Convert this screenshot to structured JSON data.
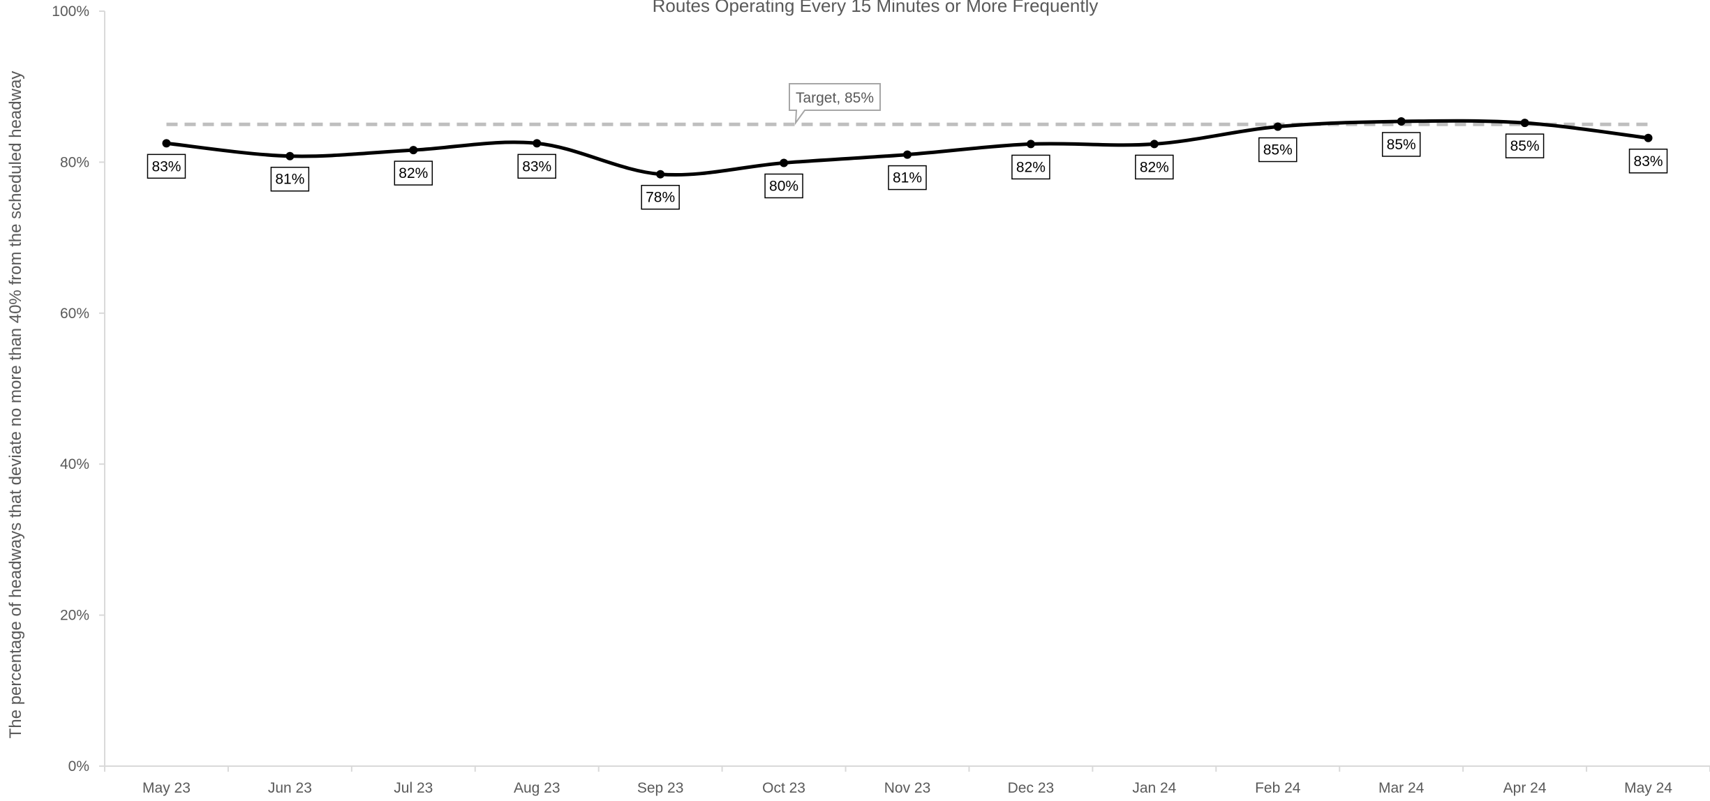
{
  "chart_data": {
    "type": "line",
    "title": "Routes Operating Every 15 Minutes or More Frequently",
    "xlabel": "",
    "ylabel": "The percentage of headways that deviate no more than 40% from the scheduled headway",
    "ylim": [
      0,
      100
    ],
    "y_ticks": [
      "0%",
      "20%",
      "40%",
      "60%",
      "80%",
      "100%"
    ],
    "y_tick_values": [
      0,
      20,
      40,
      60,
      80,
      100
    ],
    "categories": [
      "May 23",
      "Jun 23",
      "Jul 23",
      "Aug 23",
      "Sep 23",
      "Oct 23",
      "Nov 23",
      "Dec 23",
      "Jan 24",
      "Feb 24",
      "Mar 24",
      "Apr 24",
      "May 24"
    ],
    "series": [
      {
        "values": [
          82.5,
          80.8,
          81.6,
          82.5,
          78.4,
          79.9,
          81.0,
          82.4,
          82.4,
          84.7,
          85.4,
          85.2,
          83.2
        ],
        "data_labels": [
          "83%",
          "81%",
          "82%",
          "83%",
          "78%",
          "80%",
          "81%",
          "82%",
          "82%",
          "85%",
          "85%",
          "85%",
          "83%"
        ],
        "color": "#000000",
        "smooth": true
      }
    ],
    "target": {
      "value": 85,
      "label": "Target, 85%",
      "color": "#bfbfbf",
      "style": "dashed"
    },
    "grid": false,
    "legend": "none"
  }
}
